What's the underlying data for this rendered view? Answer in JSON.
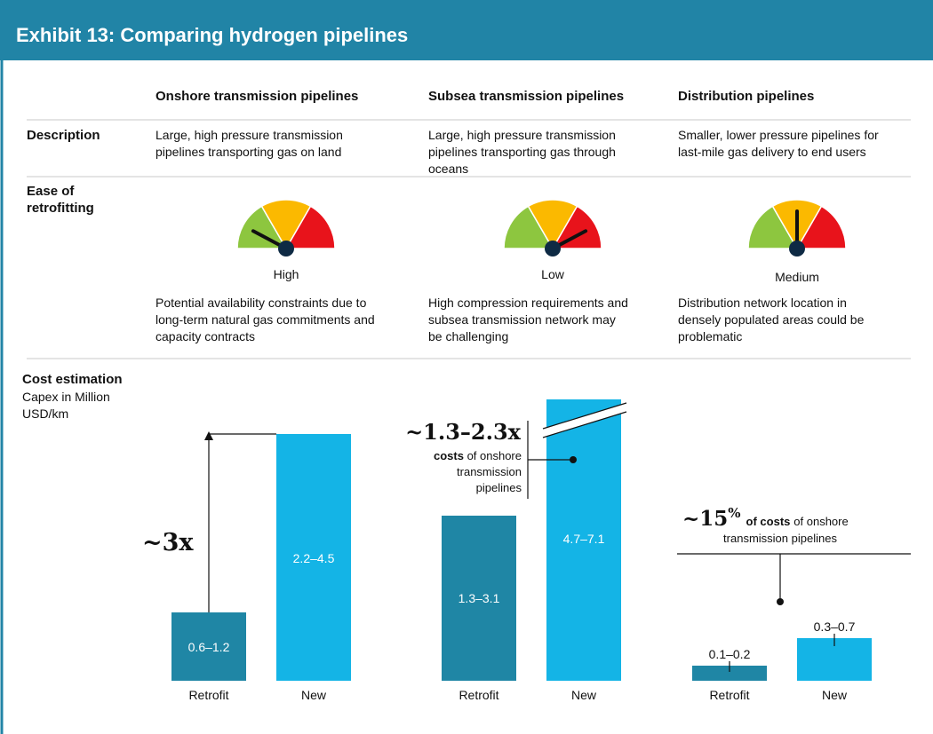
{
  "header": {
    "title": "Exhibit 13: Comparing hydrogen pipelines"
  },
  "columns": [
    "Onshore transmission pipelines",
    "Subsea transmission pipelines",
    "Distribution pipelines"
  ],
  "description": {
    "label": "Description",
    "cells": [
      [
        "Large, high pressure transmission",
        "pipelines transporting gas on land"
      ],
      [
        "Large, high pressure transmission",
        "pipelines transporting gas through",
        "oceans"
      ],
      [
        "Smaller, lower pressure pipelines for",
        "last-mile gas delivery to end users"
      ]
    ]
  },
  "ease": {
    "label": [
      "Ease of",
      "retrofitting"
    ],
    "ratings": [
      "High",
      "Low",
      "Medium"
    ],
    "notes": [
      [
        "Potential availability constraints due to",
        "long-term natural gas commitments and",
        "capacity contracts"
      ],
      [
        "High compression requirements and",
        "subsea transmission network may",
        "be challenging"
      ],
      [
        "Distribution network location in",
        "densely populated areas could be",
        "problematic"
      ]
    ]
  },
  "cost": {
    "label": "Cost estimation",
    "unit": [
      "Capex in Million",
      "USD/km"
    ],
    "groups": [
      [
        [
          "Retrofit",
          "New"
        ],
        [
          "0.6–1.2",
          "2.2–4.5"
        ]
      ],
      [
        [
          "Retrofit",
          "New"
        ],
        [
          "1.3–3.1",
          "4.7–7.1"
        ]
      ],
      [
        [
          "Retrofit",
          "New"
        ],
        [
          "0.1–0.2",
          "0.3–0.7"
        ]
      ]
    ],
    "annotations": [
      "~3x",
      {
        "big": "~1.3–2.3x",
        "bold": "costs",
        "lines": [
          "of onshore",
          "transmission",
          "pipelines"
        ]
      },
      {
        "big": "~15",
        "sup": "%",
        "bold": "of costs",
        "lines": [
          "of onshore",
          "transmission pipelines"
        ]
      }
    ]
  }
}
